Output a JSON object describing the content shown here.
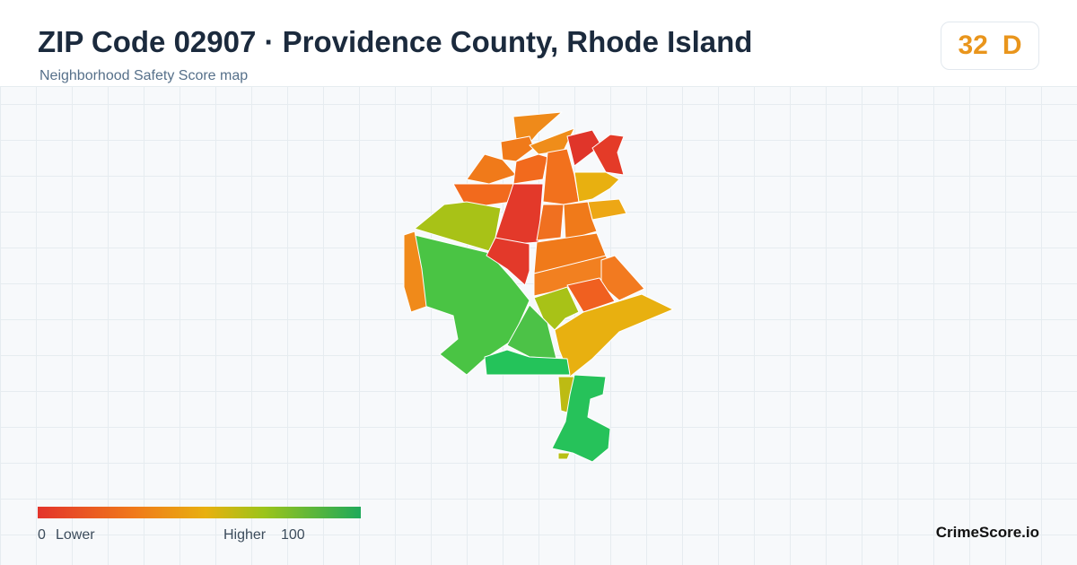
{
  "header": {
    "title": "ZIP Code 02907 · Providence County, Rhode Island",
    "subtitle": "Neighborhood Safety Score map"
  },
  "score": {
    "value": "32",
    "grade": "D"
  },
  "legend": {
    "min": "0",
    "min_label": "Lower",
    "max_label": "Higher",
    "max": "100"
  },
  "brand": "CrimeScore.io"
}
